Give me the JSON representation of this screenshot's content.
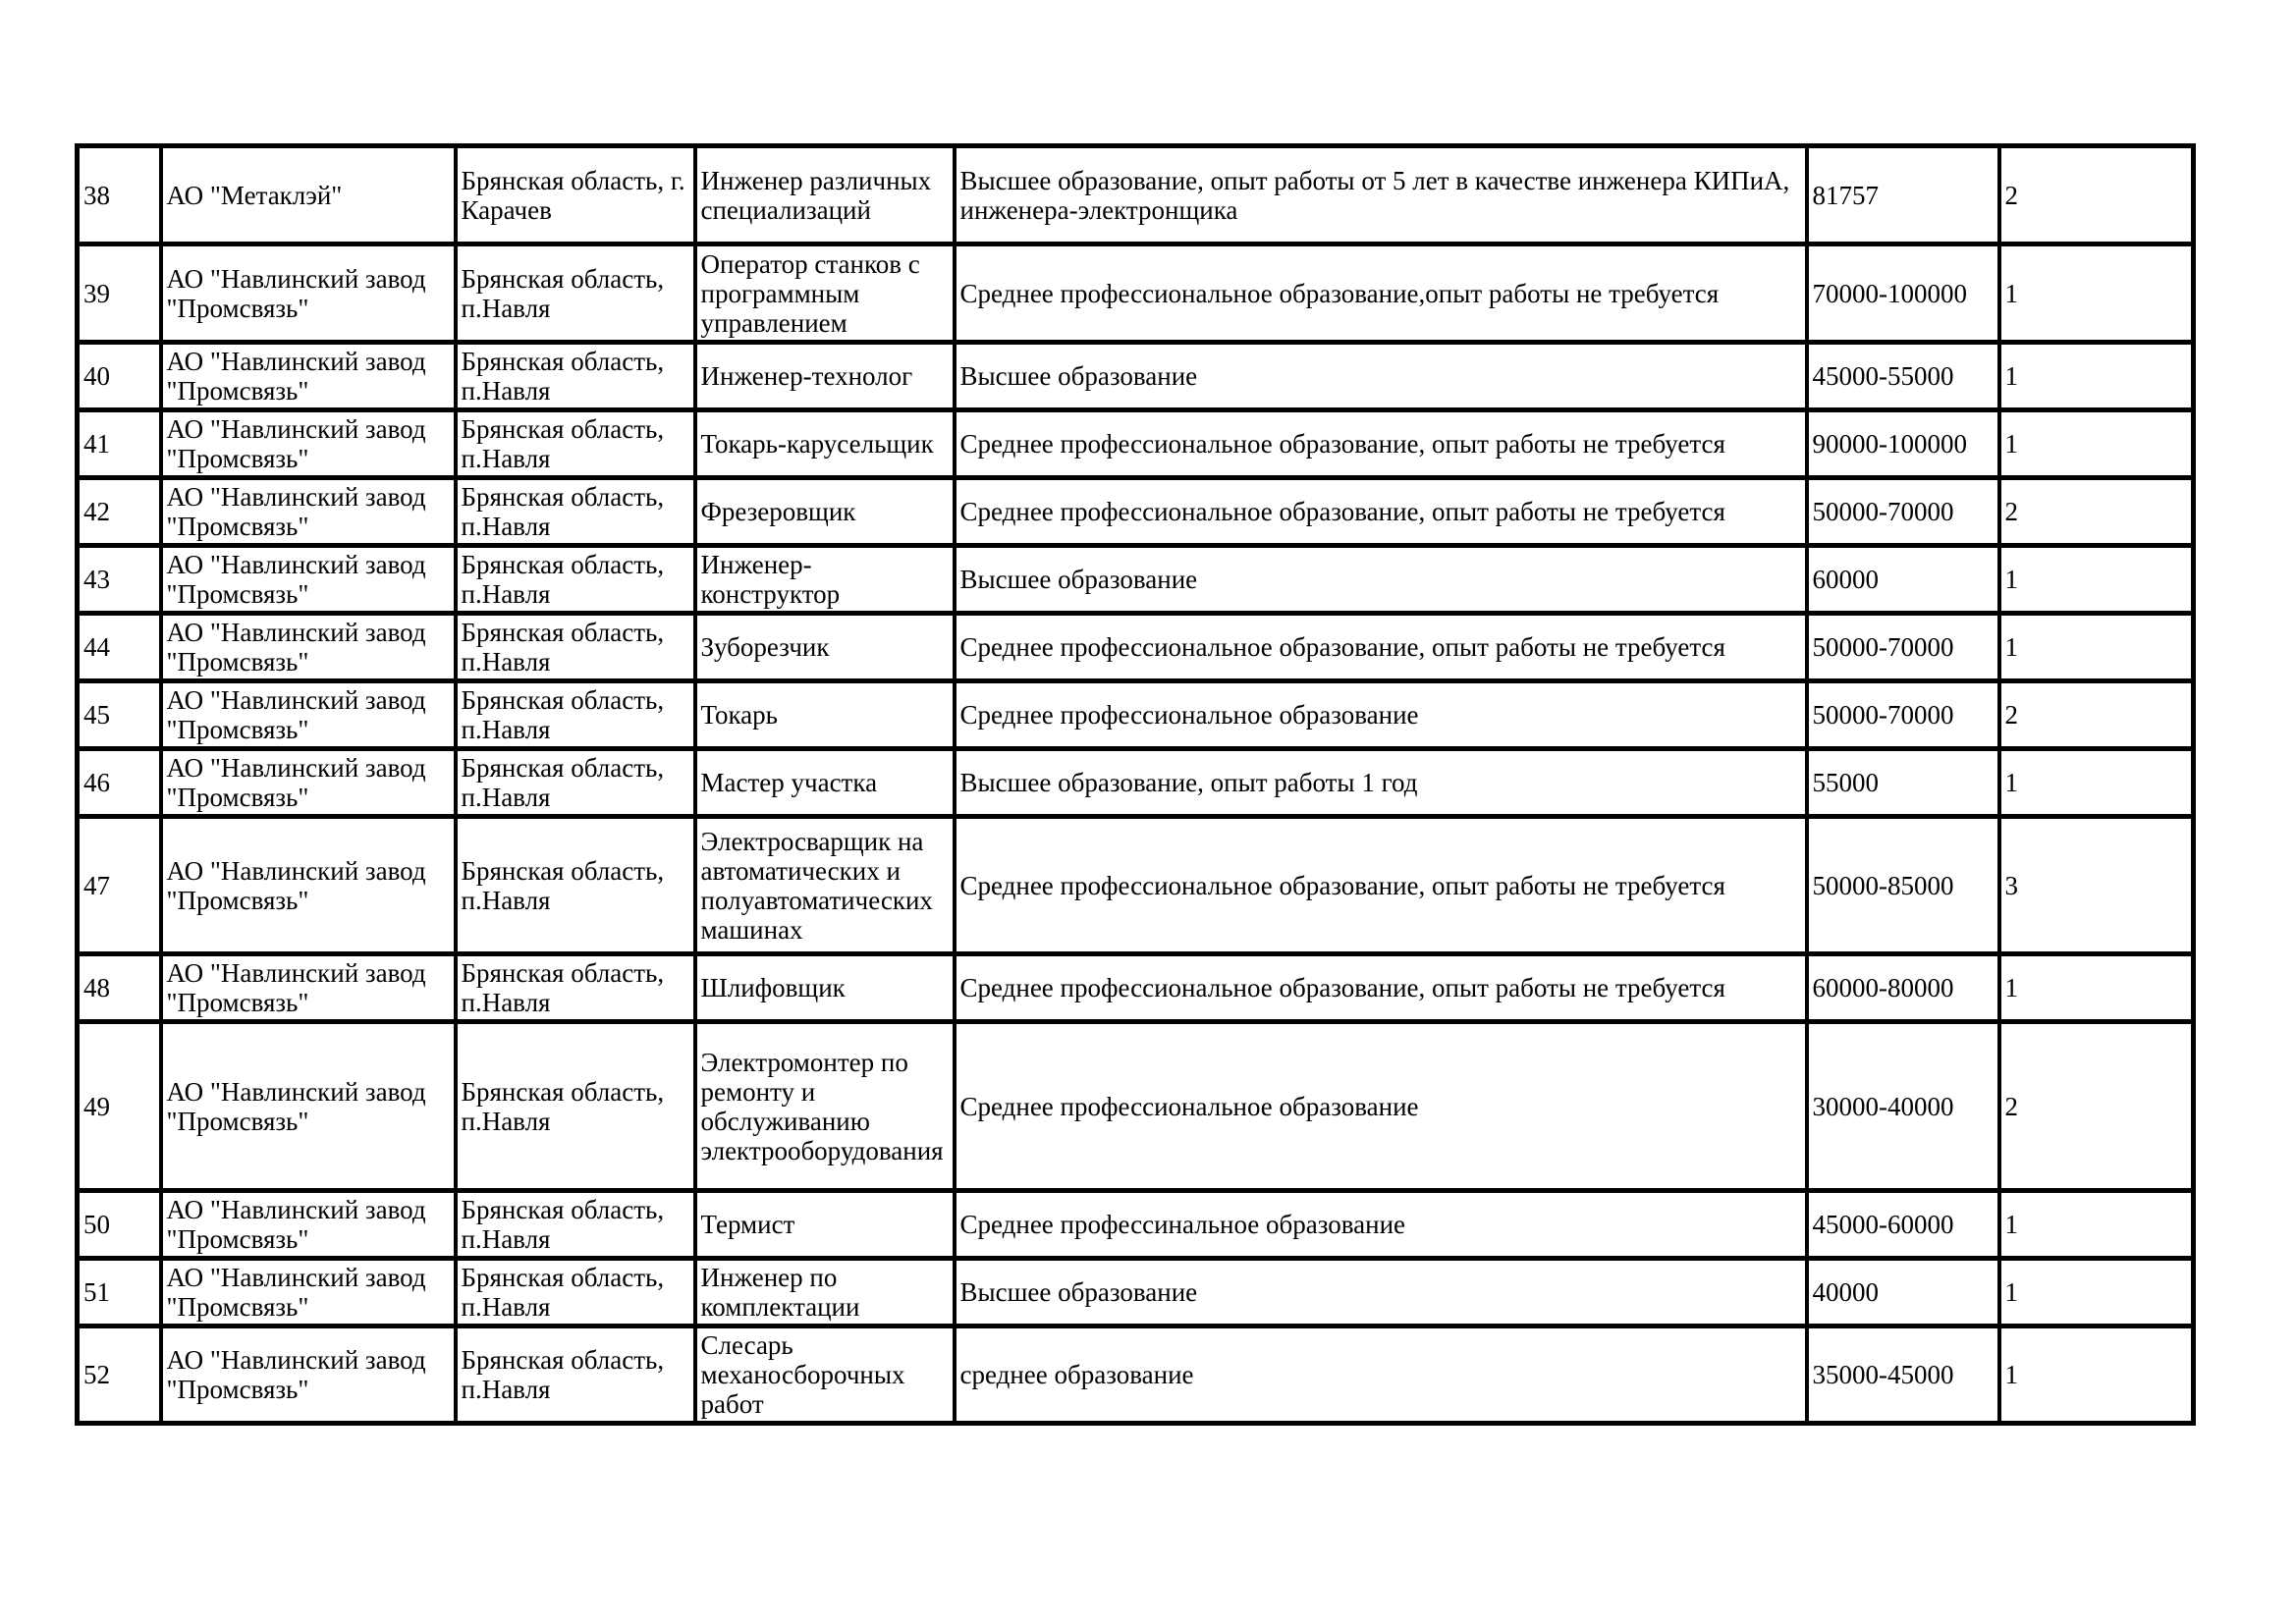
{
  "table": {
    "column_keys": [
      "num",
      "company",
      "region",
      "position",
      "requirements",
      "salary",
      "count"
    ],
    "text_color": "#000000",
    "border_color": "#000000",
    "rows": [
      {
        "num": "38",
        "company": "АО \"Метаклэй\"",
        "region": "Брянская область, г. Карачев",
        "position": "Инженер различных специализаций",
        "requirements": "Высшее образование, опыт работы от 5 лет в качестве инженера КИПиА, инженера-электронщика",
        "salary": "81757",
        "count": "2"
      },
      {
        "num": "39",
        "company": "АО \"Навлинский завод \"Промсвязь\"",
        "region": "Брянская область, п.Навля",
        "position": "Оператор станков с программным управлением",
        "requirements": "Среднее профессиональное образование,опыт работы не требуется",
        "salary": "70000-100000",
        "count": "1"
      },
      {
        "num": "40",
        "company": "АО \"Навлинский завод \"Промсвязь\"",
        "region": "Брянская область, п.Навля",
        "position": "Инженер-технолог",
        "requirements": "Высшее образование",
        "salary": "45000-55000",
        "count": "1"
      },
      {
        "num": "41",
        "company": "АО \"Навлинский завод \"Промсвязь\"",
        "region": "Брянская область, п.Навля",
        "position": "Токарь-карусельщик",
        "requirements": "Среднее профессиональное образование, опыт работы не требуется",
        "salary": "90000-100000",
        "count": "1"
      },
      {
        "num": "42",
        "company": "АО \"Навлинский завод \"Промсвязь\"",
        "region": "Брянская область, п.Навля",
        "position": "Фрезеровщик",
        "requirements": "Среднее профессиональное образование, опыт работы не требуется",
        "salary": "50000-70000",
        "count": "2"
      },
      {
        "num": "43",
        "company": "АО \"Навлинский завод \"Промсвязь\"",
        "region": "Брянская область, п.Навля",
        "position": "Инженер-конструктор",
        "requirements": "Высшее образование",
        "salary": "60000",
        "count": "1"
      },
      {
        "num": "44",
        "company": "АО \"Навлинский завод \"Промсвязь\"",
        "region": "Брянская область, п.Навля",
        "position": "Зуборезчик",
        "requirements": "Среднее профессиональное образование, опыт работы не требуется",
        "salary": "50000-70000",
        "count": "1"
      },
      {
        "num": "45",
        "company": "АО \"Навлинский завод \"Промсвязь\"",
        "region": "Брянская область, п.Навля",
        "position": "Токарь",
        "requirements": "Среднее профессиональное образование",
        "salary": "50000-70000",
        "count": "2"
      },
      {
        "num": "46",
        "company": "АО \"Навлинский завод \"Промсвязь\"",
        "region": "Брянская область, п.Навля",
        "position": "Мастер участка",
        "requirements": "Высшее образование, опыт работы 1 год",
        "salary": "55000",
        "count": "1"
      },
      {
        "num": "47",
        "company": "АО \"Навлинский завод \"Промсвязь\"",
        "region": "Брянская область, п.Навля",
        "position": "Электросварщик на автоматических и полуавтоматических машинах",
        "requirements": "Среднее профессиональное образование, опыт работы не требуется",
        "salary": "50000-85000",
        "count": "3"
      },
      {
        "num": "48",
        "company": "АО \"Навлинский завод \"Промсвязь\"",
        "region": "Брянская область, п.Навля",
        "position": "Шлифовщик",
        "requirements": "Среднее профессиональное образование, опыт работы не требуется",
        "salary": "60000-80000",
        "count": "1"
      },
      {
        "num": "49",
        "company": "АО \"Навлинский завод \"Промсвязь\"",
        "region": "Брянская область, п.Навля",
        "position": "Электромонтер по ремонту и обслуживанию электрооборудования",
        "requirements": "Среднее профессиональное образование",
        "salary": "30000-40000",
        "count": "2"
      },
      {
        "num": "50",
        "company": "АО \"Навлинский завод \"Промсвязь\"",
        "region": "Брянская область, п.Навля",
        "position": "Термист",
        "requirements": "Среднее профессинальное образование",
        "salary": "45000-60000",
        "count": "1"
      },
      {
        "num": "51",
        "company": "АО \"Навлинский завод \"Промсвязь\"",
        "region": "Брянская область, п.Навля",
        "position": "Инженер по комплектации",
        "requirements": "Высшее образование",
        "salary": "40000",
        "count": "1"
      },
      {
        "num": "52",
        "company": "АО \"Навлинский завод \"Промсвязь\"",
        "region": "Брянская область, п.Навля",
        "position": "Слесарь механосборочных работ",
        "requirements": "среднее образование",
        "salary": "35000-45000",
        "count": "1"
      }
    ]
  }
}
